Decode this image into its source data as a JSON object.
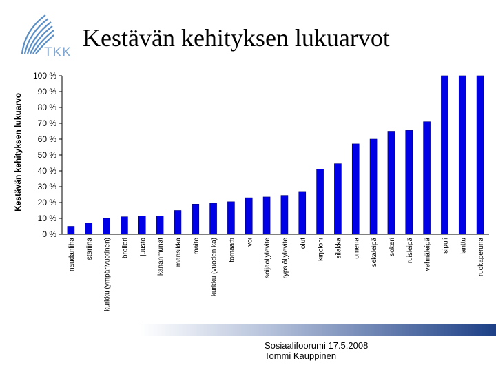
{
  "slide": {
    "title": "Kestävän kehityksen lukuarvot",
    "logo_text": "TKK",
    "footer_line1": "Sosiaalifoorumi 17.5.2008",
    "footer_line2": "Tommi Kauppinen"
  },
  "colors": {
    "bar_fill": "#0000e6",
    "bar_stroke": "#000080",
    "plot_background": "#ffffff",
    "gridline": "#999999",
    "logo_blue": "#5b8fc5",
    "footer_dark": "#1c3f86"
  },
  "chart_data": {
    "type": "bar",
    "title": "",
    "xlabel": "",
    "ylabel": "Kestävän kehityksen lukuarvo",
    "ylim": [
      0,
      100
    ],
    "yticks": [
      "0 %",
      "10 %",
      "20 %",
      "30 %",
      "40 %",
      "50 %",
      "60 %",
      "70 %",
      "80 %",
      "90 %",
      "100 %"
    ],
    "grid": false,
    "legend": "none",
    "categories": [
      "naudanliha",
      "stariina",
      "kurkku (ympärivuotinen)",
      "broileri",
      "juusto",
      "kananmunat",
      "mansikka",
      "maito",
      "kurkku (vuoden ka)",
      "tomaatti",
      "voi",
      "soijaöljylevite",
      "rypsiöljylevite",
      "olut",
      "kirjolohi",
      "silakka",
      "omena",
      "sekaleipä",
      "sokeri",
      "ruisleipä",
      "vehnäleipä",
      "sipuli",
      "lanttu",
      "ruokaperuna"
    ],
    "values": [
      5,
      7,
      10,
      11,
      11.5,
      11.5,
      15,
      19,
      19.5,
      20.5,
      23,
      23.5,
      24.5,
      27,
      41,
      44.5,
      57,
      60,
      65,
      65.5,
      71,
      100,
      100,
      100
    ]
  }
}
